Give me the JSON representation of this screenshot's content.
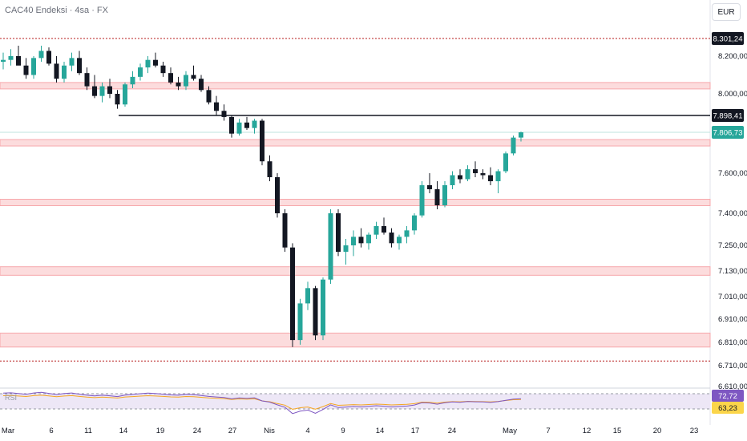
{
  "header": {
    "title": "CAC40 Endeksi · 4sa · FX",
    "currency_button": "EUR"
  },
  "rsi_panel": {
    "label": "RSI",
    "value_badge": "72,72",
    "ma_badge": "63,23"
  },
  "colors": {
    "up": "#26a69a",
    "down": "#131722",
    "zone_fill": "#fcdcdd",
    "zone_border": "#f7a8ac",
    "current_price_badge": "#26a69a",
    "level_line": "#131722",
    "rsi_line": "#7e57c2",
    "rsi_ma": "#f5a623"
  },
  "chart_data": {
    "type": "candlestick",
    "symbol": "CAC40 Endeksi",
    "timeframe": "4sa",
    "y_ticks": [
      {
        "value": 8200,
        "label": "8.200,00"
      },
      {
        "value": 8000,
        "label": "8.000,00"
      },
      {
        "value": 7600,
        "label": "7.600,00"
      },
      {
        "value": 7400,
        "label": "7.400,00"
      },
      {
        "value": 7250,
        "label": "7.250,00"
      },
      {
        "value": 7130,
        "label": "7.130,00"
      },
      {
        "value": 7010,
        "label": "7.010,00"
      },
      {
        "value": 6910,
        "label": "6.910,00"
      },
      {
        "value": 6810,
        "label": "6.810,00"
      },
      {
        "value": 6710,
        "label": "6.710,00"
      },
      {
        "value": 6610,
        "label": "6.610,00"
      }
    ],
    "x_ticks": [
      "Mar",
      "6",
      "11",
      "14",
      "19",
      "24",
      "27",
      "Nis",
      "4",
      "9",
      "14",
      "17",
      "24",
      "May",
      "7",
      "12",
      "15",
      "20",
      "23"
    ],
    "price_badges": [
      {
        "value": 8301.24,
        "label": "8.301,24",
        "style": "dark"
      },
      {
        "value": 7898.41,
        "label": "7.898,41",
        "style": "dark"
      },
      {
        "value": 7806.73,
        "label": "7.806,73",
        "style": "current"
      }
    ],
    "horizontal_levels": [
      {
        "value": 8301.24,
        "style": "dotted"
      },
      {
        "value": 7898.41,
        "style": "solid"
      },
      {
        "value": 6730,
        "style": "dotted"
      }
    ],
    "zones": [
      {
        "from": 8040,
        "to": 8060
      },
      {
        "from": 7740,
        "to": 7770
      },
      {
        "from": 7460,
        "to": 7470
      },
      {
        "from": 7110,
        "to": 7150
      },
      {
        "from": 6790,
        "to": 6850
      }
    ],
    "candles_approx": [
      [
        8170,
        8220,
        8130,
        8180
      ],
      [
        8180,
        8240,
        8150,
        8200
      ],
      [
        8200,
        8260,
        8170,
        8150
      ],
      [
        8150,
        8190,
        8080,
        8100
      ],
      [
        8100,
        8200,
        8080,
        8190
      ],
      [
        8190,
        8260,
        8170,
        8230
      ],
      [
        8230,
        8250,
        8150,
        8160
      ],
      [
        8160,
        8200,
        8060,
        8080
      ],
      [
        8080,
        8170,
        8060,
        8150
      ],
      [
        8150,
        8220,
        8120,
        8190
      ],
      [
        8190,
        8230,
        8100,
        8110
      ],
      [
        8110,
        8140,
        8020,
        8040
      ],
      [
        8040,
        8100,
        7980,
        7990
      ],
      [
        7990,
        8060,
        7960,
        8040
      ],
      [
        8040,
        8080,
        7980,
        8000
      ],
      [
        8000,
        8020,
        7930,
        7950
      ],
      [
        7950,
        8060,
        7940,
        8050
      ],
      [
        8050,
        8120,
        8030,
        8090
      ],
      [
        8090,
        8160,
        8070,
        8140
      ],
      [
        8140,
        8200,
        8110,
        8180
      ],
      [
        8180,
        8220,
        8140,
        8150
      ],
      [
        8150,
        8170,
        8090,
        8110
      ],
      [
        8110,
        8140,
        8050,
        8060
      ],
      [
        8060,
        8090,
        8020,
        8040
      ],
      [
        8040,
        8120,
        8020,
        8100
      ],
      [
        8100,
        8150,
        8070,
        8080
      ],
      [
        8080,
        8100,
        8010,
        8020
      ],
      [
        8020,
        8040,
        7950,
        7960
      ],
      [
        7960,
        7990,
        7900,
        7920
      ],
      [
        7920,
        7950,
        7870,
        7890
      ],
      [
        7890,
        7900,
        7780,
        7800
      ],
      [
        7800,
        7880,
        7790,
        7860
      ],
      [
        7860,
        7890,
        7820,
        7830
      ],
      [
        7830,
        7880,
        7800,
        7870
      ],
      [
        7870,
        7880,
        7640,
        7660
      ],
      [
        7660,
        7690,
        7560,
        7580
      ],
      [
        7580,
        7600,
        7380,
        7400
      ],
      [
        7400,
        7420,
        7220,
        7240
      ],
      [
        7240,
        7260,
        6790,
        6820
      ],
      [
        6820,
        7000,
        6800,
        6980
      ],
      [
        6980,
        7080,
        6950,
        7050
      ],
      [
        7050,
        7060,
        6820,
        6840
      ],
      [
        6840,
        7100,
        6820,
        7090
      ],
      [
        7090,
        7420,
        7070,
        7400
      ],
      [
        7400,
        7420,
        7200,
        7220
      ],
      [
        7220,
        7280,
        7160,
        7250
      ],
      [
        7250,
        7320,
        7200,
        7290
      ],
      [
        7290,
        7330,
        7240,
        7260
      ],
      [
        7260,
        7310,
        7230,
        7300
      ],
      [
        7300,
        7360,
        7280,
        7340
      ],
      [
        7340,
        7380,
        7300,
        7310
      ],
      [
        7310,
        7330,
        7240,
        7260
      ],
      [
        7260,
        7300,
        7230,
        7290
      ],
      [
        7290,
        7340,
        7260,
        7320
      ],
      [
        7320,
        7400,
        7300,
        7390
      ],
      [
        7390,
        7560,
        7380,
        7540
      ],
      [
        7540,
        7600,
        7500,
        7520
      ],
      [
        7520,
        7560,
        7420,
        7440
      ],
      [
        7440,
        7560,
        7430,
        7540
      ],
      [
        7540,
        7610,
        7520,
        7590
      ],
      [
        7590,
        7620,
        7550,
        7570
      ],
      [
        7570,
        7640,
        7560,
        7620
      ],
      [
        7620,
        7660,
        7580,
        7600
      ],
      [
        7600,
        7620,
        7570,
        7590
      ],
      [
        7590,
        7630,
        7540,
        7560
      ],
      [
        7560,
        7620,
        7500,
        7610
      ],
      [
        7610,
        7710,
        7600,
        7700
      ],
      [
        7700,
        7790,
        7690,
        7780
      ],
      [
        7780,
        7810,
        7760,
        7806.73
      ]
    ]
  }
}
